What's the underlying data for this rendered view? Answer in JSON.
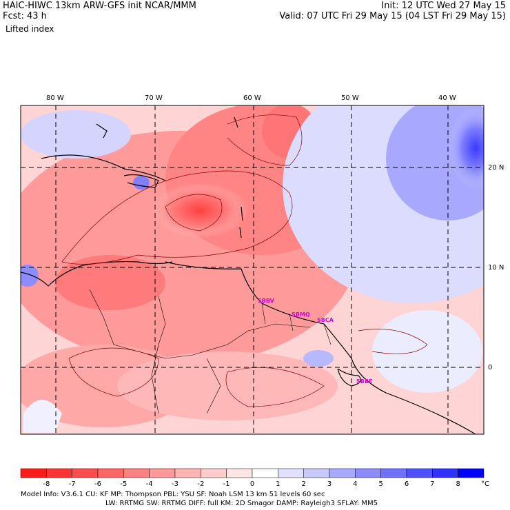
{
  "header": {
    "title": "HAIC-HIWC 13km ARW-GFS init   NCAR/MMM",
    "fcst": "Fcst:   43 h",
    "variable": "Lifted index",
    "init": "Init: 12 UTC Wed 27 May 15",
    "valid": "Valid: 07 UTC Fri 29 May 15 (04 LST Fri 29 May 15)"
  },
  "map": {
    "lon_labels": [
      "80 W",
      "70 W",
      "60 W",
      "50 W",
      "40 W"
    ],
    "lat_labels": [
      "20 N",
      "10 N",
      "0"
    ],
    "stations": [
      "SBBV",
      "SBMQ",
      "SBCA",
      "SBBE"
    ]
  },
  "colorbar": {
    "labels": [
      "-8",
      "-7",
      "-6",
      "-5",
      "-4",
      "-3",
      "-2",
      "-1",
      "0",
      "1",
      "2",
      "3",
      "4",
      "5",
      "6",
      "7",
      "8"
    ],
    "unit": "°C",
    "colors": [
      "#ff1a1a",
      "#ff3333",
      "#ff4d4d",
      "#ff6666",
      "#ff8080",
      "#ff9999",
      "#ffb3b3",
      "#ffcccc",
      "#ffe6e6",
      "#ffffff",
      "#e0e0ff",
      "#c8c8ff",
      "#a8a8ff",
      "#8c8cff",
      "#7070ff",
      "#5050ff",
      "#3030ff",
      "#0000ff"
    ]
  },
  "footer": {
    "line1": "Model Info: V3.6.1    CU: KF      MP: Thompson     PBL: YSU        SF: Noah LSM     13 km    51 levels   60 sec",
    "line2": "LW: RRTMG    SW: RRTMG   DIFF: full    KM: 2D Smagor DAMP: Rayleigh3   SFLAY: MM5"
  }
}
